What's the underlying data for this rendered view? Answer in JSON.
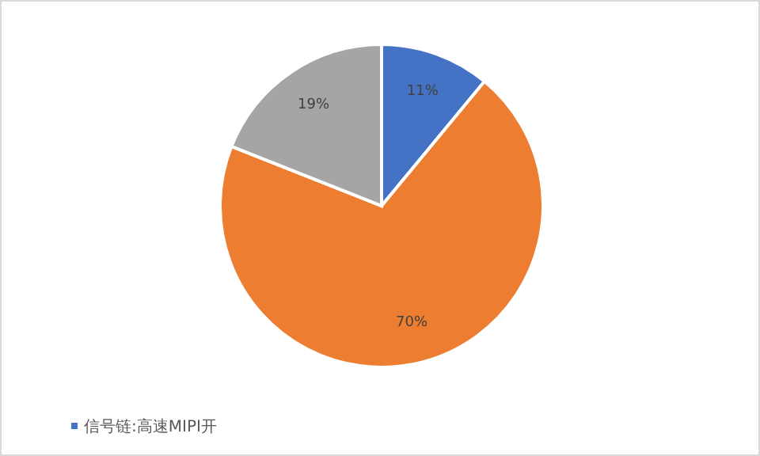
{
  "chart_data": {
    "type": "pie",
    "categories": [
      "信号链:高速MIPI开",
      null,
      null
    ],
    "values": [
      11,
      70,
      19
    ],
    "colors": [
      "#4472c4",
      "#ed7d31",
      "#a5a5a5"
    ],
    "value_labels": [
      "11%",
      "70%",
      "19%"
    ],
    "legend": "bottom left"
  }
}
